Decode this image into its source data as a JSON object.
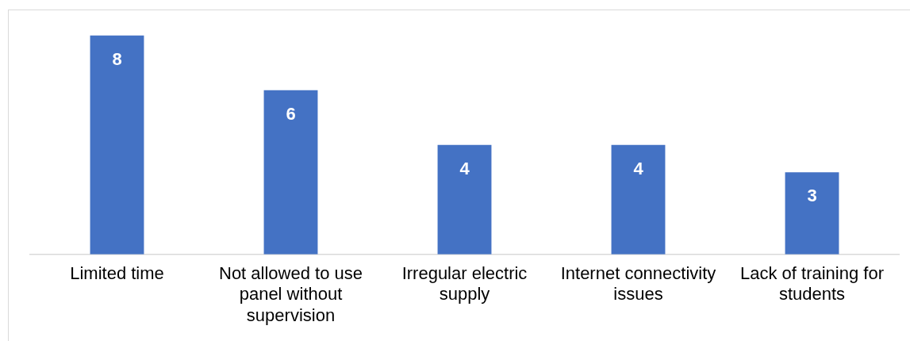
{
  "chart_data": {
    "type": "bar",
    "categories": [
      "Limited time",
      "Not allowed to use panel without supervision",
      "Irregular electric supply",
      "Internet connectivity issues",
      "Lack of training for students"
    ],
    "values": [
      8,
      6,
      4,
      4,
      3
    ],
    "color": "#4472c4",
    "data_labels": true
  }
}
